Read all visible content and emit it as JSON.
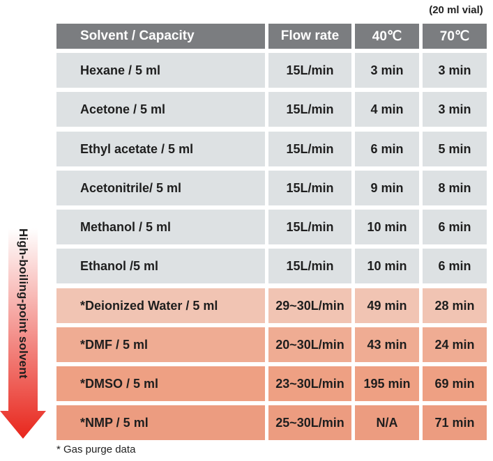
{
  "vial_note": "(20 ml vial)",
  "headers": [
    "Solvent / Capacity",
    "Flow rate",
    "40℃",
    "70℃"
  ],
  "rows": [
    {
      "solvent": "Hexane /  5 ml",
      "flow": "15L/min",
      "t40": "3 min",
      "t70": "3 min",
      "bg": "#dde1e3"
    },
    {
      "solvent": "Acetone / 5 ml",
      "flow": "15L/min",
      "t40": "4 min",
      "t70": "3 min",
      "bg": "#dde1e3"
    },
    {
      "solvent": "Ethyl acetate / 5 ml",
      "flow": "15L/min",
      "t40": "6 min",
      "t70": "5 min",
      "bg": "#dde1e3"
    },
    {
      "solvent": "Acetonitrile/ 5 ml",
      "flow": "15L/min",
      "t40": "9 min",
      "t70": "8 min",
      "bg": "#dde1e3"
    },
    {
      "solvent": "Methanol / 5 ml",
      "flow": "15L/min",
      "t40": "10 min",
      "t70": "6 min",
      "bg": "#dde1e3"
    },
    {
      "solvent": "Ethanol  /5 ml",
      "flow": "15L/min",
      "t40": "10 min",
      "t70": "6 min",
      "bg": "#dde1e3"
    },
    {
      "solvent": "*Deionized Water / 5 ml",
      "flow": "29~30L/min",
      "t40": "49 min",
      "t70": "28 min",
      "bg": "#f1c4b3"
    },
    {
      "solvent": "*DMF / 5 ml",
      "flow": "20~30L/min",
      "t40": "43 min",
      "t70": "24 min",
      "bg": "#efac93"
    },
    {
      "solvent": "*DMSO / 5 ml",
      "flow": "23~30L/min",
      "t40": "195 min",
      "t70": "69 min",
      "bg": "#eea083"
    },
    {
      "solvent": "*NMP / 5 ml",
      "flow": "25~30L/min",
      "t40": "N/A",
      "t70": "71 min",
      "bg": "#ec9c80"
    }
  ],
  "arrow_label": "High-boiling-point solvent",
  "arrow_colors": {
    "top": "#ffffff",
    "bottom": "#e8261c"
  },
  "footnote": "* Gas purge data"
}
